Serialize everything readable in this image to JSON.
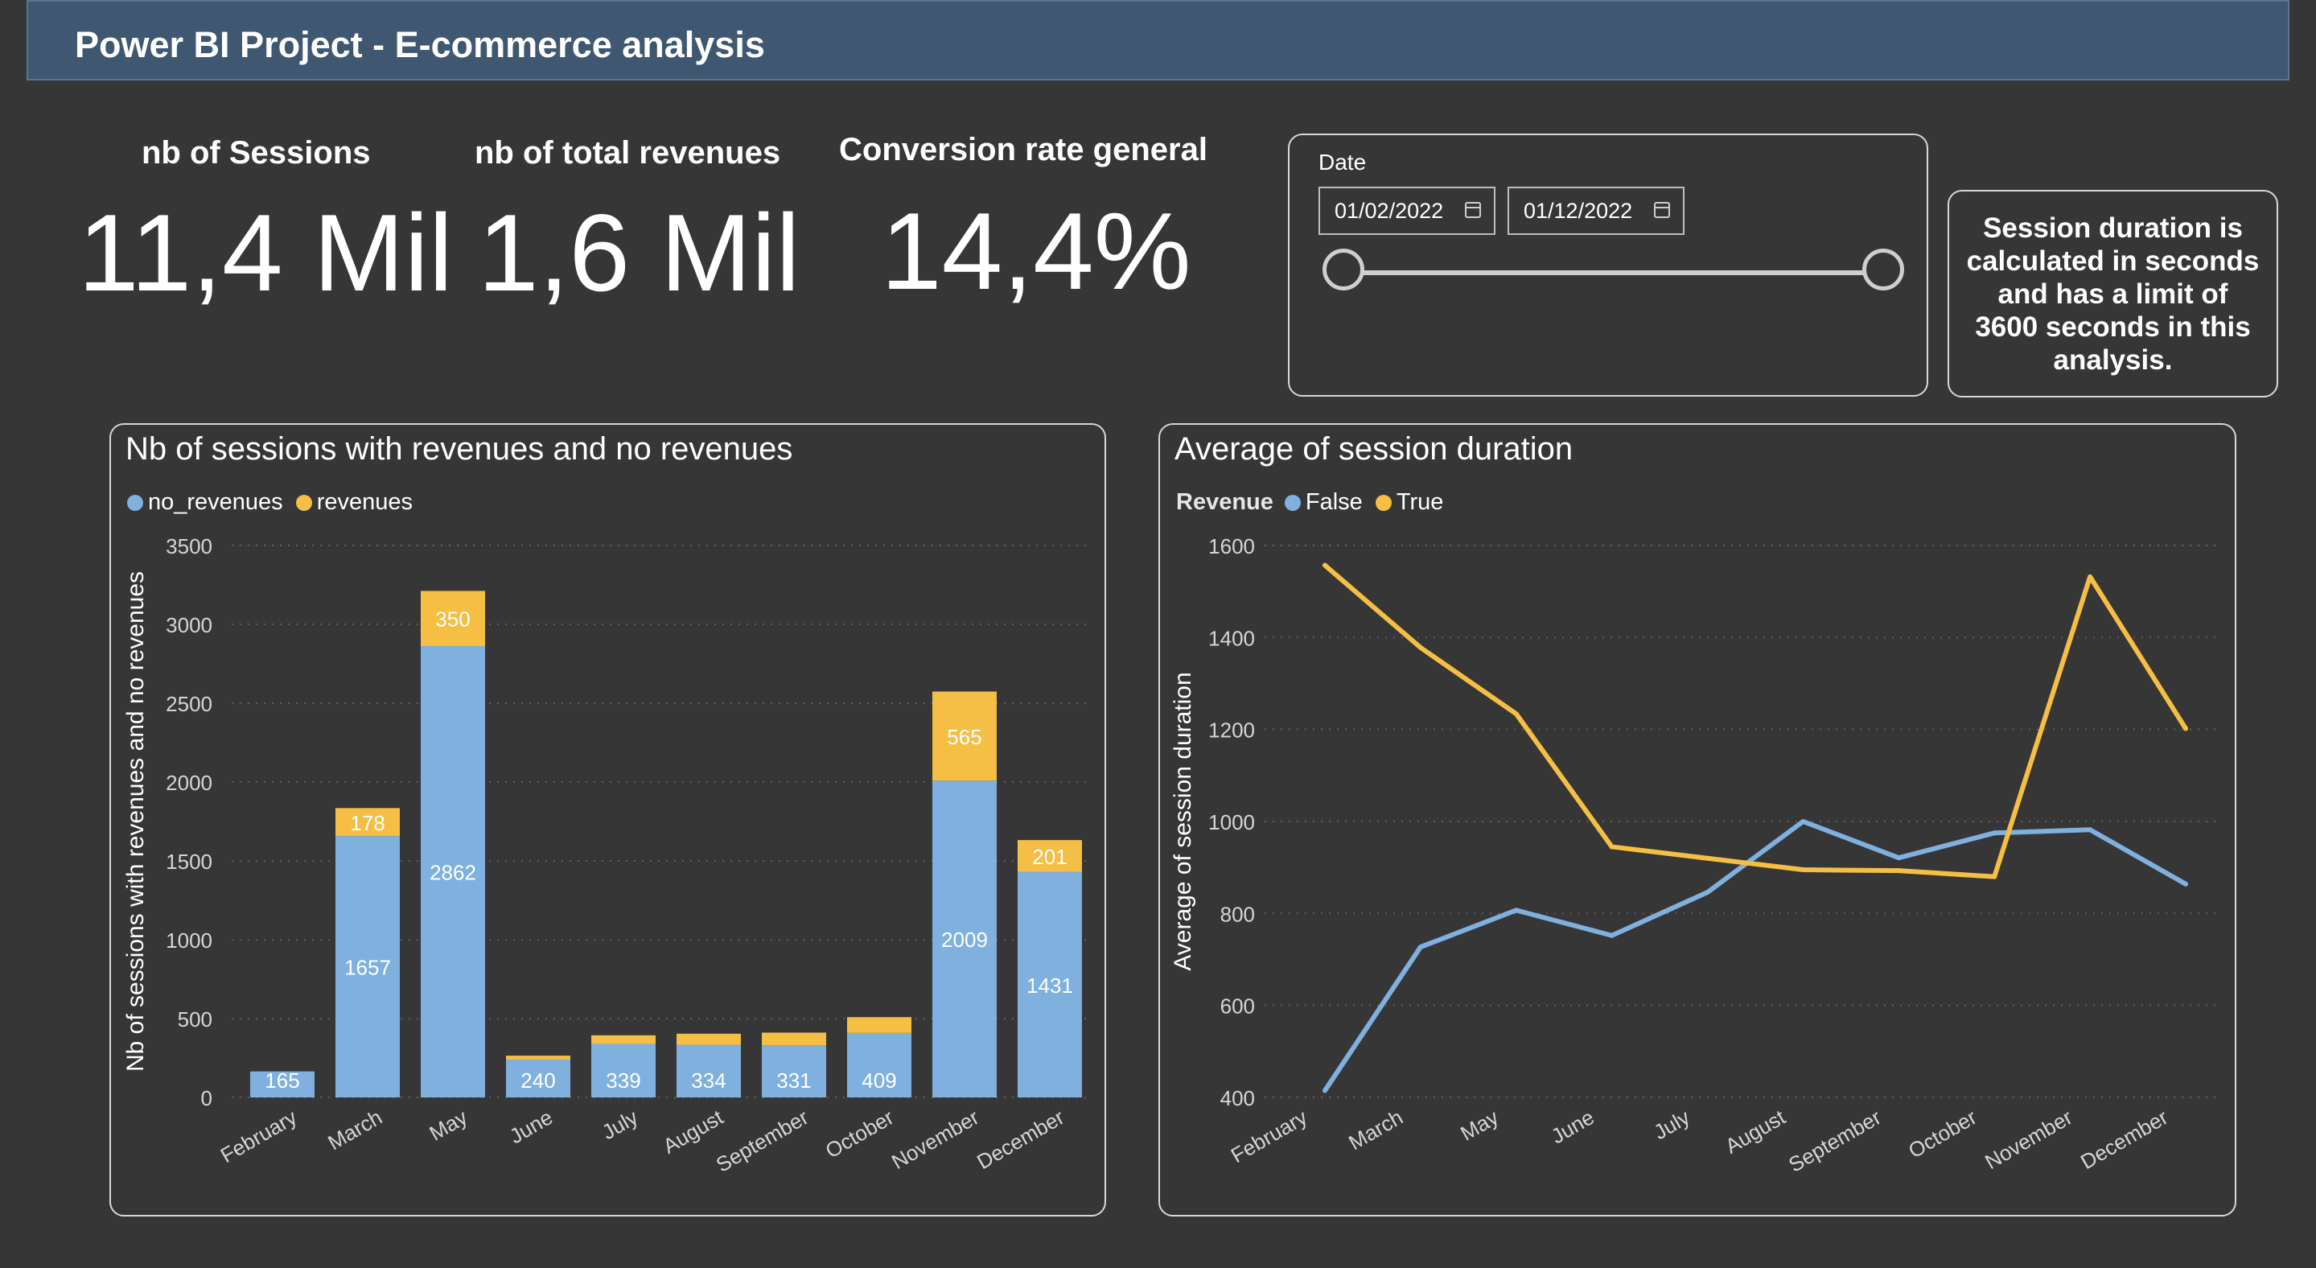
{
  "header": {
    "title": "Power BI Project - E-commerce analysis"
  },
  "kpis": [
    {
      "title": "nb of Sessions",
      "value": "11,4 Mil"
    },
    {
      "title": "nb of total revenues",
      "value": "1,6 Mil"
    },
    {
      "title": "Conversion rate general",
      "value": "14,4%"
    }
  ],
  "date_filter": {
    "label": "Date",
    "start": "01/02/2022",
    "end": "01/12/2022",
    "range_fraction": [
      0,
      1
    ]
  },
  "note": {
    "text": "Session duration is calculated in seconds and  has a limit of 3600 seconds in this analysis."
  },
  "colors": {
    "blue": "#7fb0de",
    "yellow": "#f5be45",
    "background": "#363636",
    "header": "#3f5770"
  },
  "chart_data": [
    {
      "type": "bar",
      "stacked": true,
      "title": "Nb of sessions with revenues and no revenues",
      "ylabel": "Nb of sessions with revenues and no revenues",
      "xlabel": "",
      "ylim": [
        0,
        3500
      ],
      "yticks": [
        "0",
        "500",
        "1000",
        "1500",
        "2000",
        "2500",
        "3000",
        "3500"
      ],
      "categories": [
        "February",
        "March",
        "May",
        "June",
        "July",
        "August",
        "September",
        "October",
        "November",
        "December"
      ],
      "series": [
        {
          "name": "no_revenues",
          "color": "#7fb0de",
          "values": [
            165,
            1657,
            2862,
            240,
            339,
            334,
            331,
            409,
            2009,
            1431
          ]
        },
        {
          "name": "revenues",
          "color": "#f5be45",
          "values": [
            0,
            178,
            350,
            25,
            55,
            70,
            80,
            100,
            565,
            201
          ]
        }
      ],
      "value_labels": {
        "no_revenues": [
          "165",
          "1657",
          "2862",
          "240",
          "339",
          "334",
          "331",
          "409",
          "2009",
          "1431"
        ],
        "revenues": [
          "",
          "178",
          "350",
          "",
          "",
          "",
          "",
          "",
          "565",
          "201"
        ]
      },
      "legend_position": "top-left",
      "grid": true
    },
    {
      "type": "line",
      "title": "Average of session duration",
      "ylabel": "Average of session duration",
      "xlabel": "",
      "legend_title": "Revenue",
      "ylim": [
        400,
        1600
      ],
      "yticks": [
        "400",
        "600",
        "800",
        "1000",
        "1200",
        "1400",
        "1600"
      ],
      "categories": [
        "February",
        "March",
        "May",
        "June",
        "July",
        "August",
        "September",
        "October",
        "November",
        "December"
      ],
      "series": [
        {
          "name": "False",
          "color": "#7fb0de",
          "values": [
            415,
            727,
            807,
            752,
            846,
            1000,
            921,
            975,
            982,
            864
          ]
        },
        {
          "name": "True",
          "color": "#f5be45",
          "values": [
            1557,
            1378,
            1234,
            945,
            920,
            895,
            893,
            880,
            1532,
            1202
          ]
        }
      ],
      "legend_position": "top-left",
      "grid": true
    }
  ]
}
